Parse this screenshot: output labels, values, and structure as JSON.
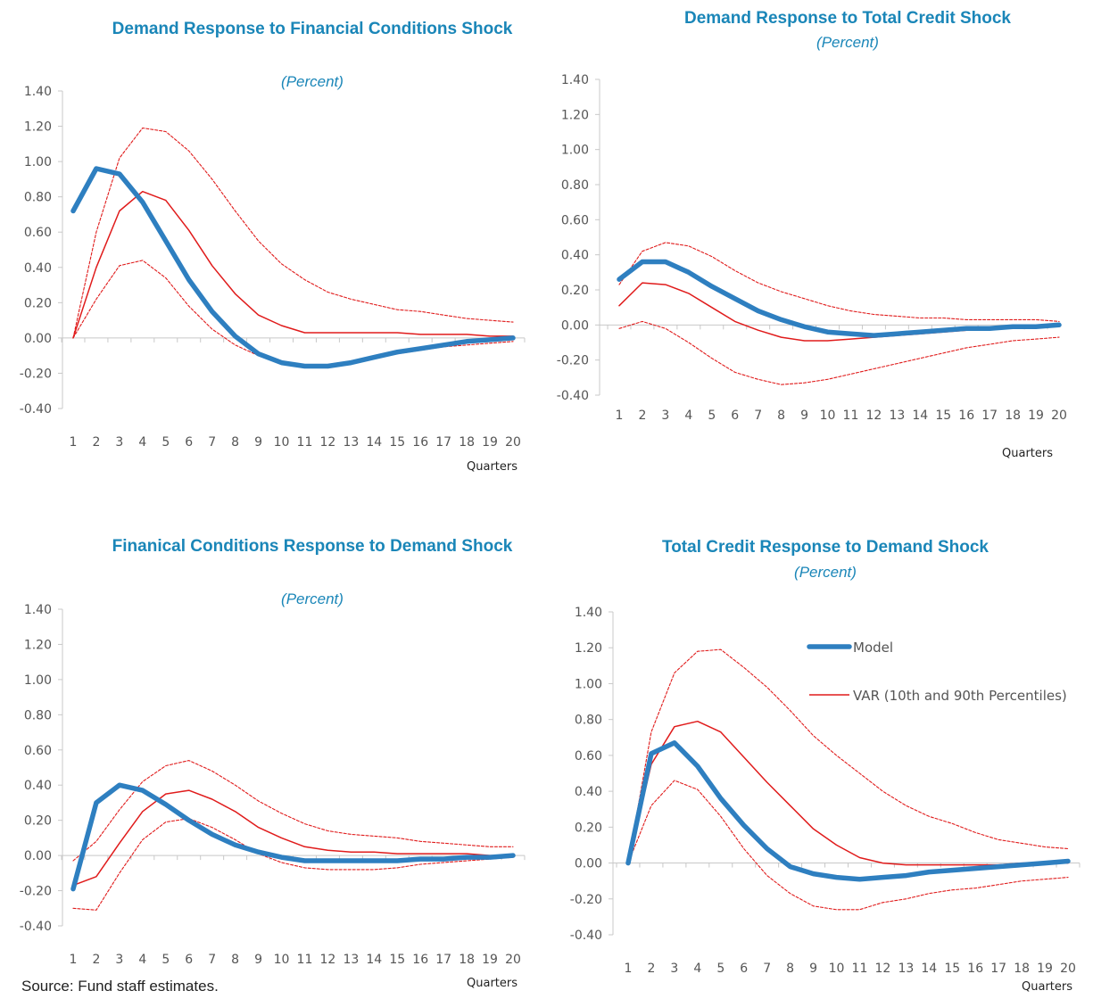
{
  "source_note": "Source: Fund staff estimates.",
  "legend": {
    "model_label": "Model",
    "var_label": "VAR (10th and 90th Percentiles)"
  },
  "colors": {
    "model": "#2e7fc0",
    "var": "#e01b1b",
    "title": "#1a86b8"
  },
  "chart_data": [
    {
      "type": "line",
      "title": "Demand Response to Financial Conditions Shock",
      "subtitle": "(Percent)",
      "xlabel": "Quarters",
      "ylabel": "",
      "x": [
        1,
        2,
        3,
        4,
        5,
        6,
        7,
        8,
        9,
        10,
        11,
        12,
        13,
        14,
        15,
        16,
        17,
        18,
        19,
        20
      ],
      "ylim": [
        -0.4,
        1.4
      ],
      "yticks": [
        "1.40",
        "1.20",
        "1.00",
        "0.80",
        "0.60",
        "0.40",
        "0.20",
        "0.00",
        "-0.20",
        "-0.40"
      ],
      "series": [
        {
          "name": "Model",
          "role": "model",
          "values": [
            0.72,
            0.96,
            0.93,
            0.77,
            0.55,
            0.33,
            0.15,
            0.01,
            -0.09,
            -0.14,
            -0.16,
            -0.16,
            -0.14,
            -0.11,
            -0.08,
            -0.06,
            -0.04,
            -0.02,
            -0.01,
            0.0
          ]
        },
        {
          "name": "",
          "role": "var_median",
          "values": [
            0.0,
            0.4,
            0.72,
            0.83,
            0.78,
            0.61,
            0.41,
            0.25,
            0.13,
            0.07,
            0.03,
            0.03,
            0.03,
            0.03,
            0.03,
            0.02,
            0.02,
            0.02,
            0.01,
            0.01
          ]
        },
        {
          "name": "",
          "role": "var_upper",
          "values": [
            0.0,
            0.6,
            1.02,
            1.19,
            1.17,
            1.06,
            0.9,
            0.72,
            0.55,
            0.42,
            0.33,
            0.26,
            0.22,
            0.19,
            0.16,
            0.15,
            0.13,
            0.11,
            0.1,
            0.09
          ]
        },
        {
          "name": "",
          "role": "var_lower",
          "values": [
            0.0,
            0.22,
            0.41,
            0.44,
            0.34,
            0.18,
            0.05,
            -0.04,
            -0.1,
            -0.14,
            -0.15,
            -0.15,
            -0.13,
            -0.11,
            -0.09,
            -0.07,
            -0.05,
            -0.04,
            -0.03,
            -0.02
          ]
        }
      ]
    },
    {
      "type": "line",
      "title": "Demand Response to Total Credit Shock",
      "subtitle": "(Percent)",
      "xlabel": "Quarters",
      "ylabel": "",
      "x": [
        1,
        2,
        3,
        4,
        5,
        6,
        7,
        8,
        9,
        10,
        11,
        12,
        13,
        14,
        15,
        16,
        17,
        18,
        19,
        20
      ],
      "ylim": [
        -0.4,
        1.4
      ],
      "yticks": [
        "1.40",
        "1.20",
        "1.00",
        "0.80",
        "0.60",
        "0.40",
        "0.20",
        "0.00",
        "-0.20",
        "-0.40"
      ],
      "series": [
        {
          "name": "Model",
          "role": "model",
          "values": [
            0.26,
            0.36,
            0.36,
            0.3,
            0.22,
            0.15,
            0.08,
            0.03,
            -0.01,
            -0.04,
            -0.05,
            -0.06,
            -0.05,
            -0.04,
            -0.03,
            -0.02,
            -0.02,
            -0.01,
            -0.01,
            0.0
          ]
        },
        {
          "name": "",
          "role": "var_median",
          "values": [
            0.11,
            0.24,
            0.23,
            0.18,
            0.1,
            0.02,
            -0.03,
            -0.07,
            -0.09,
            -0.09,
            -0.08,
            -0.07,
            -0.06,
            -0.05,
            -0.04,
            -0.03,
            -0.02,
            -0.01,
            -0.01,
            -0.01
          ]
        },
        {
          "name": "",
          "role": "var_upper",
          "values": [
            0.23,
            0.42,
            0.47,
            0.45,
            0.39,
            0.31,
            0.24,
            0.19,
            0.15,
            0.11,
            0.08,
            0.06,
            0.05,
            0.04,
            0.04,
            0.03,
            0.03,
            0.03,
            0.03,
            0.02
          ]
        },
        {
          "name": "",
          "role": "var_lower",
          "values": [
            -0.02,
            0.02,
            -0.02,
            -0.1,
            -0.19,
            -0.27,
            -0.31,
            -0.34,
            -0.33,
            -0.31,
            -0.28,
            -0.25,
            -0.22,
            -0.19,
            -0.16,
            -0.13,
            -0.11,
            -0.09,
            -0.08,
            -0.07
          ]
        }
      ]
    },
    {
      "type": "line",
      "title": "Finanical Conditions Response to Demand Shock",
      "subtitle": "(Percent)",
      "xlabel": "Quarters",
      "ylabel": "",
      "x": [
        1,
        2,
        3,
        4,
        5,
        6,
        7,
        8,
        9,
        10,
        11,
        12,
        13,
        14,
        15,
        16,
        17,
        18,
        19,
        20
      ],
      "ylim": [
        -0.4,
        1.4
      ],
      "yticks": [
        "1.40",
        "1.20",
        "1.00",
        "0.80",
        "0.60",
        "0.40",
        "0.20",
        "0.00",
        "-0.20",
        "-0.40"
      ],
      "series": [
        {
          "name": "Model",
          "role": "model",
          "values": [
            -0.19,
            0.3,
            0.4,
            0.37,
            0.29,
            0.2,
            0.12,
            0.06,
            0.02,
            -0.01,
            -0.03,
            -0.03,
            -0.03,
            -0.03,
            -0.03,
            -0.02,
            -0.02,
            -0.01,
            -0.01,
            0.0
          ]
        },
        {
          "name": "",
          "role": "var_median",
          "values": [
            -0.17,
            -0.12,
            0.07,
            0.25,
            0.35,
            0.37,
            0.32,
            0.25,
            0.16,
            0.1,
            0.05,
            0.03,
            0.02,
            0.02,
            0.01,
            0.01,
            0.01,
            0.01,
            0.0,
            0.0
          ]
        },
        {
          "name": "",
          "role": "var_upper",
          "values": [
            -0.03,
            0.08,
            0.26,
            0.42,
            0.51,
            0.54,
            0.48,
            0.4,
            0.31,
            0.24,
            0.18,
            0.14,
            0.12,
            0.11,
            0.1,
            0.08,
            0.07,
            0.06,
            0.05,
            0.05
          ]
        },
        {
          "name": "",
          "role": "var_lower",
          "values": [
            -0.3,
            -0.31,
            -0.1,
            0.09,
            0.19,
            0.21,
            0.16,
            0.09,
            0.01,
            -0.04,
            -0.07,
            -0.08,
            -0.08,
            -0.08,
            -0.07,
            -0.05,
            -0.04,
            -0.03,
            -0.02,
            -0.01
          ]
        }
      ]
    },
    {
      "type": "line",
      "title": "Total Credit Response to Demand Shock",
      "subtitle": "(Percent)",
      "xlabel": "Quarters",
      "ylabel": "",
      "legend_position": "top-right",
      "x": [
        1,
        2,
        3,
        4,
        5,
        6,
        7,
        8,
        9,
        10,
        11,
        12,
        13,
        14,
        15,
        16,
        17,
        18,
        19,
        20
      ],
      "ylim": [
        -0.4,
        1.4
      ],
      "yticks": [
        "1.40",
        "1.20",
        "1.00",
        "0.80",
        "0.60",
        "0.40",
        "0.20",
        "0.00",
        "-0.20",
        "-0.40"
      ],
      "series": [
        {
          "name": "Model",
          "role": "model",
          "values": [
            0.0,
            0.61,
            0.67,
            0.54,
            0.36,
            0.21,
            0.08,
            -0.02,
            -0.06,
            -0.08,
            -0.09,
            -0.08,
            -0.07,
            -0.05,
            -0.04,
            -0.03,
            -0.02,
            -0.01,
            0.0,
            0.01
          ]
        },
        {
          "name": "",
          "role": "var_median",
          "values": [
            0.0,
            0.55,
            0.76,
            0.79,
            0.73,
            0.59,
            0.45,
            0.32,
            0.19,
            0.1,
            0.03,
            0.0,
            -0.01,
            -0.01,
            -0.01,
            -0.01,
            -0.01,
            0.0,
            0.0,
            0.0
          ]
        },
        {
          "name": "",
          "role": "var_upper",
          "values": [
            0.0,
            0.73,
            1.06,
            1.18,
            1.19,
            1.09,
            0.98,
            0.85,
            0.71,
            0.6,
            0.5,
            0.4,
            0.32,
            0.26,
            0.22,
            0.17,
            0.13,
            0.11,
            0.09,
            0.08
          ]
        },
        {
          "name": "",
          "role": "var_lower",
          "values": [
            0.0,
            0.32,
            0.46,
            0.41,
            0.26,
            0.08,
            -0.07,
            -0.17,
            -0.24,
            -0.26,
            -0.26,
            -0.22,
            -0.2,
            -0.17,
            -0.15,
            -0.14,
            -0.12,
            -0.1,
            -0.09,
            -0.08
          ]
        }
      ]
    }
  ]
}
